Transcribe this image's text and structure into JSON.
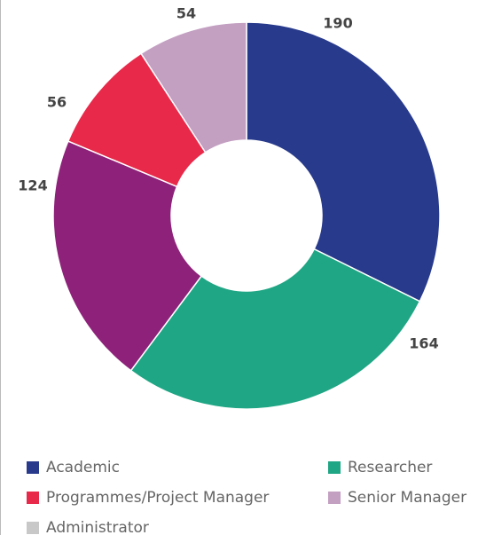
{
  "chart_data": {
    "type": "donut",
    "categories": [
      "Academic",
      "Researcher",
      null,
      "Programmes/Project Manager",
      "Senior Manager",
      "Administrator"
    ],
    "values": [
      190,
      164,
      124,
      56,
      54,
      null
    ],
    "colors": [
      "#283a8c",
      "#1fa684",
      "#8e227a",
      "#e8294a",
      "#c39fc2",
      "#c8c8c8"
    ],
    "legend": "bottom"
  }
}
